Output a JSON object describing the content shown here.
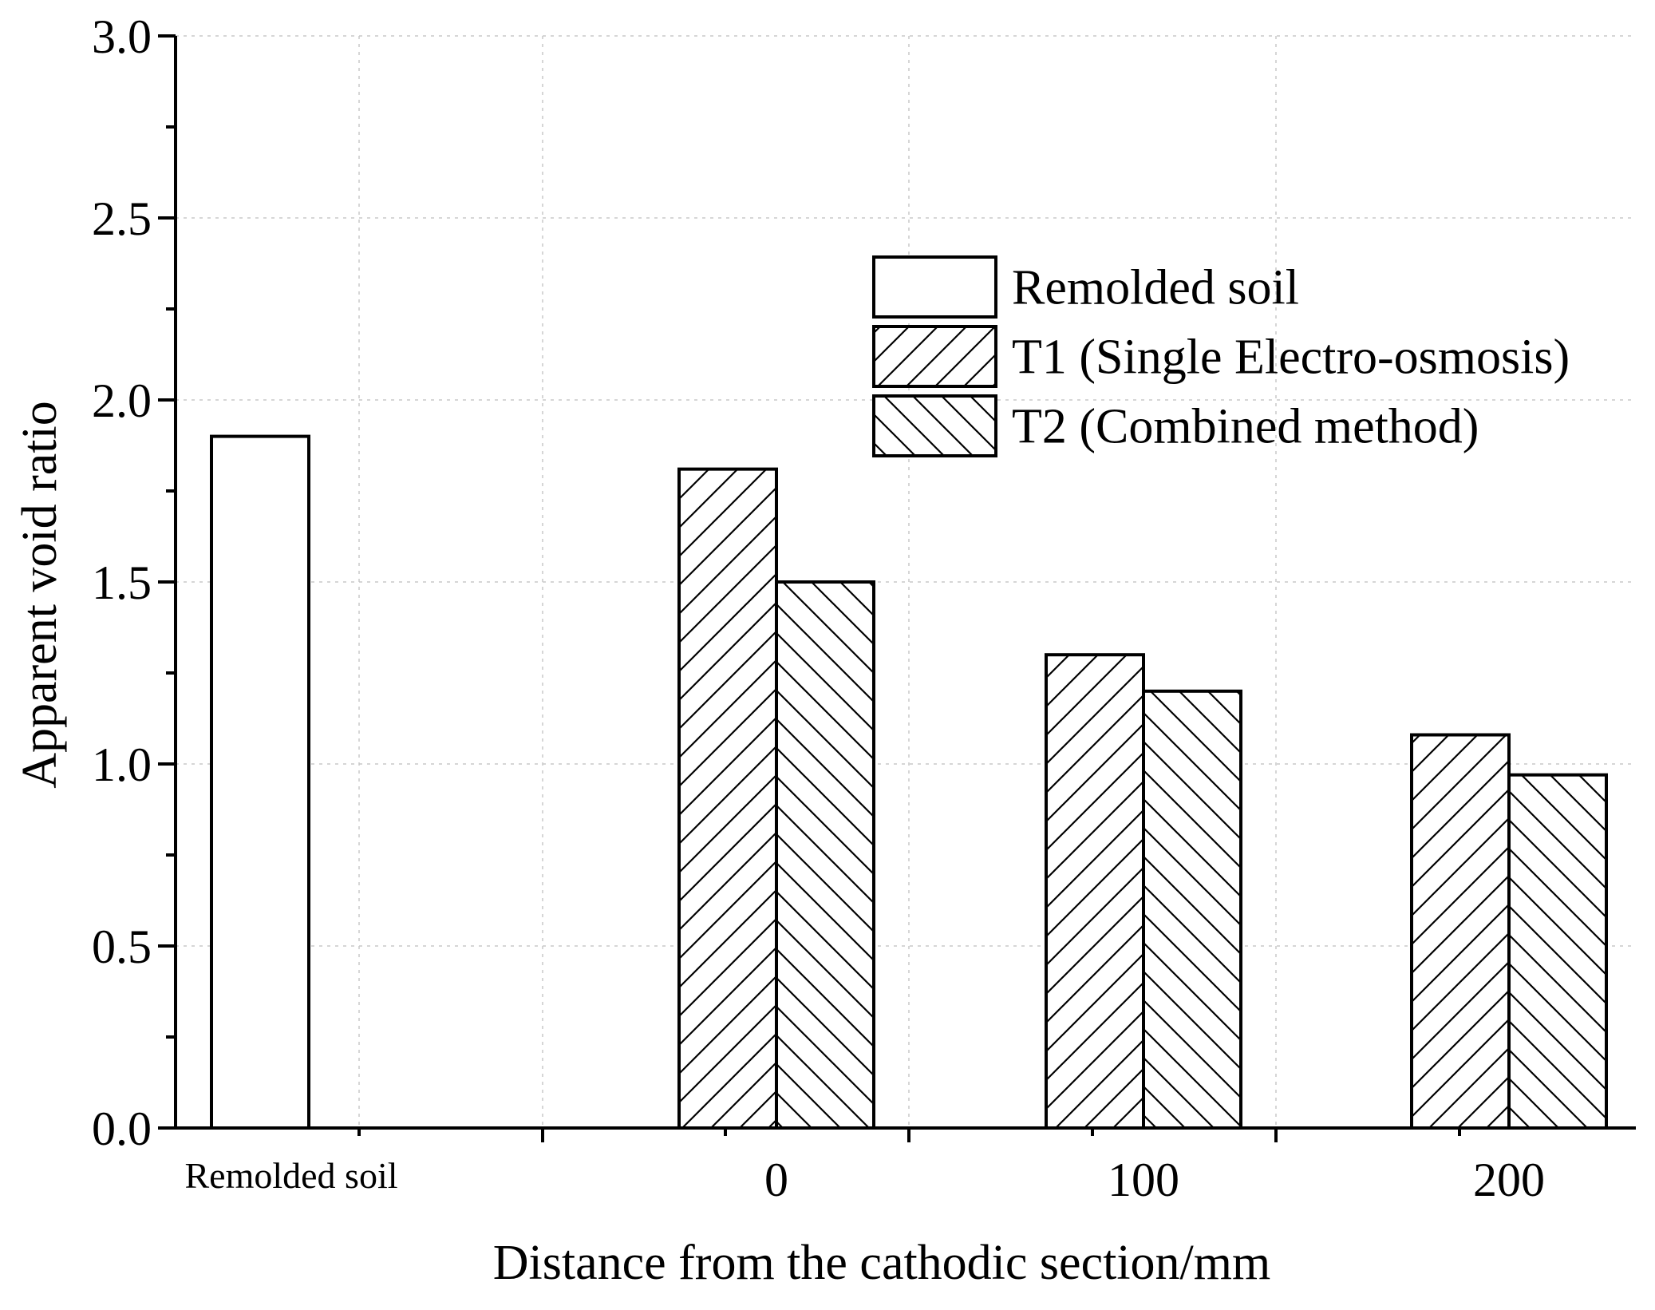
{
  "chart_data": {
    "type": "bar",
    "title": "",
    "xlabel": "Distance from the cathodic section/mm",
    "ylabel": "Apparent void ratio",
    "ylim": [
      0,
      3.0
    ],
    "yticks": [
      "0.0",
      "0.5",
      "1.0",
      "1.5",
      "2.0",
      "2.5",
      "3.0"
    ],
    "ytick_values": [
      0,
      0.5,
      1.0,
      1.5,
      2.0,
      2.5,
      3.0
    ],
    "categories": [
      "Remolded soil",
      "0",
      "100",
      "200"
    ],
    "grid": true,
    "legend_position": "top-right",
    "series": [
      {
        "name": "Remolded soil",
        "pattern": "none",
        "values": [
          1.9,
          null,
          null,
          null
        ]
      },
      {
        "name": "T1 (Single Electro-osmosis)",
        "pattern": "forward-hatch",
        "values": [
          null,
          1.81,
          1.3,
          1.08
        ]
      },
      {
        "name": "T2 (Combined method)",
        "pattern": "back-hatch",
        "values": [
          null,
          1.5,
          1.2,
          0.97
        ]
      }
    ]
  },
  "colors": {
    "stroke": "#000000",
    "fill": "#ffffff",
    "grid": "#c8c8c8"
  }
}
